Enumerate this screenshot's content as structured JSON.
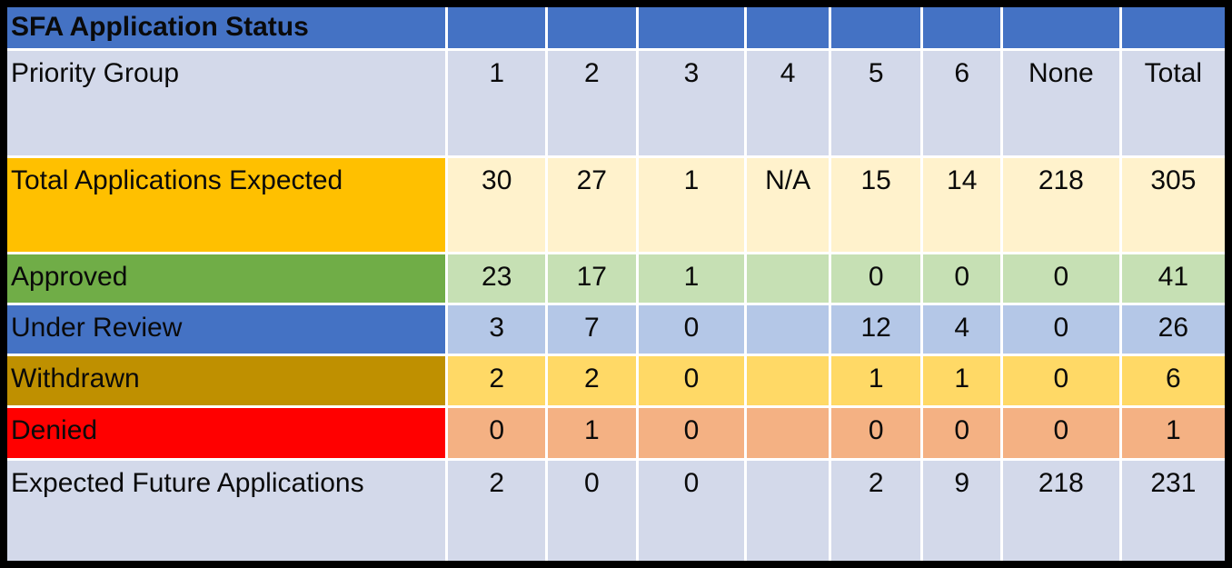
{
  "chart_data": {
    "type": "table",
    "title": "SFA Application Status",
    "header": [
      "Priority Group",
      "1",
      "2",
      "3",
      "4",
      "5",
      "6",
      "None",
      "Total"
    ],
    "rows": [
      {
        "label": "Total Applications Expected",
        "values": [
          "30",
          "27",
          "1",
          "N/A",
          "15",
          "14",
          "218",
          "305"
        ],
        "label_bg": "#FFC000",
        "data_bg": "#FFF2CC"
      },
      {
        "label": "Approved",
        "values": [
          "23",
          "17",
          "1",
          "",
          "0",
          "0",
          "0",
          "41"
        ],
        "label_bg": "#70AD47",
        "data_bg": "#C6E0B4"
      },
      {
        "label": "Under Review",
        "values": [
          "3",
          "7",
          "0",
          "",
          "12",
          "4",
          "0",
          "26"
        ],
        "label_bg": "#4472C4",
        "data_bg": "#B4C7E7"
      },
      {
        "label": "Withdrawn",
        "values": [
          "2",
          "2",
          "0",
          "",
          "1",
          "1",
          "0",
          "6"
        ],
        "label_bg": "#BF9000",
        "data_bg": "#FFD966"
      },
      {
        "label": "Denied",
        "values": [
          "0",
          "1",
          "0",
          "",
          "0",
          "0",
          "0",
          "1"
        ],
        "label_bg": "#FF0000",
        "data_bg": "#F4B183"
      },
      {
        "label": "Expected Future Applications",
        "values": [
          "2",
          "0",
          "0",
          "",
          "2",
          "9",
          "218",
          "231"
        ],
        "label_bg": "#D3D9EA",
        "data_bg": "#D3D9EA"
      }
    ],
    "layout": {
      "title_bg": "#4472C4",
      "title_text_color": "#FFFFFF",
      "header_row_bg": "#D3D9EA",
      "grid_line_color": "#FFFFFF",
      "outer_border_color": "#000000"
    }
  }
}
